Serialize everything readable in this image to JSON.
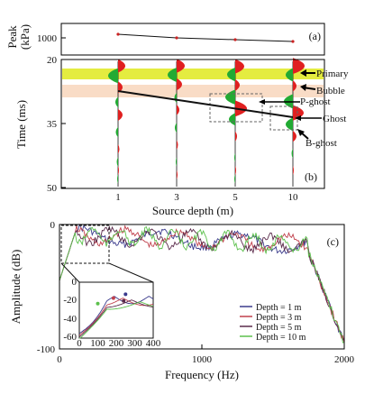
{
  "chart_data": [
    {
      "type": "line",
      "panel": "(a)",
      "ylabel": "Peak\n(kPa)",
      "y_ticks": [
        "1000"
      ],
      "x": [
        1,
        3,
        5,
        10
      ],
      "series": [
        {
          "values": [
            1040,
            1000,
            980,
            960
          ]
        }
      ],
      "color": "#cc2222"
    },
    {
      "type": "area",
      "panel": "(b)",
      "ylabel": "Time (ms)",
      "xlabel": "Source depth (m)",
      "y_ticks": [
        "20",
        "35",
        "50"
      ],
      "ylim": [
        20,
        50
      ],
      "categories": [
        "1",
        "3",
        "5",
        "10"
      ],
      "annotations": [
        "Primary",
        "Bubble",
        "P-ghost",
        "Ghost",
        "B-ghost"
      ],
      "positive_color": "#e02020",
      "negative_color": "#22aa33",
      "primary_band_color": "#e4ec40",
      "bubble_band_color": "#f9dcc6"
    },
    {
      "type": "line",
      "panel": "(c)",
      "ylabel": "Amplitude (dB)",
      "xlabel": "Frequency (Hz)",
      "xlim": [
        0,
        2000
      ],
      "ylim": [
        -100,
        0
      ],
      "x_ticks": [
        "0",
        "1000",
        "2000"
      ],
      "y_ticks": [
        "0",
        "-100"
      ],
      "inset": {
        "xlim": [
          0,
          400
        ],
        "ylim": [
          -60,
          0
        ],
        "x_ticks": [
          "0",
          "100",
          "200",
          "300",
          "400"
        ],
        "y_ticks": [
          "0",
          "-20",
          "-40",
          "-60"
        ]
      },
      "series": [
        {
          "name": "Depth = 1 m",
          "color": "#3a3a8c"
        },
        {
          "name": "Depth = 3 m",
          "color": "#c0404c"
        },
        {
          "name": "Depth = 5 m",
          "color": "#5a2a4a"
        },
        {
          "name": "Depth = 10 m",
          "color": "#5cc04c"
        }
      ]
    }
  ]
}
